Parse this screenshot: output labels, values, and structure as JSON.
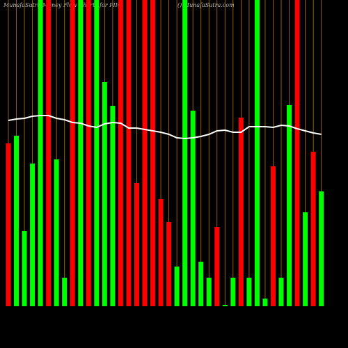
{
  "chart_data": {
    "type": "bar",
    "title": "MunafaSutra Money Flow Charts for PIIO",
    "subtitle": "() MunafaSutra.com",
    "values": [
      234,
      245,
      108,
      205,
      440,
      440,
      211,
      41,
      440,
      440,
      440,
      440,
      322,
      288,
      440,
      440,
      177,
      440,
      440,
      154,
      121,
      57,
      440,
      281,
      64,
      41,
      114,
      2,
      41,
      271,
      41,
      440,
      11,
      201,
      41,
      289,
      440,
      135,
      222,
      165
    ],
    "colors": [
      "#ff0000",
      "#00ff00",
      "#00ff00",
      "#00ff00",
      "#00ff00",
      "#ff0000",
      "#00ff00",
      "#00ff00",
      "#ff0000",
      "#00ff00",
      "#ff0000",
      "#00ff00",
      "#00ff00",
      "#00ff00",
      "#ff0000",
      "#ff0000",
      "#ff0000",
      "#ff0000",
      "#ff0000",
      "#ff0000",
      "#ff0000",
      "#00ff00",
      "#00ff00",
      "#00ff00",
      "#00ff00",
      "#00ff00",
      "#ff0000",
      "#00ff00",
      "#00ff00",
      "#ff0000",
      "#00ff00",
      "#00ff00",
      "#00ff00",
      "#ff0000",
      "#00ff00",
      "#00ff00",
      "#ff0000",
      "#00ff00",
      "#ff0000",
      "#00ff00"
    ],
    "line_values": [
      267,
      269,
      270,
      273,
      274,
      274,
      270,
      268,
      264,
      263,
      259,
      257,
      262,
      264,
      263,
      256,
      256,
      254,
      252,
      250,
      247,
      242,
      241,
      242,
      244,
      247,
      252,
      253,
      250,
      250,
      258,
      258,
      258,
      257,
      260,
      259,
      255,
      252,
      249,
      247
    ],
    "line_color": "#ffffff",
    "ylim": [
      0,
      440
    ]
  }
}
